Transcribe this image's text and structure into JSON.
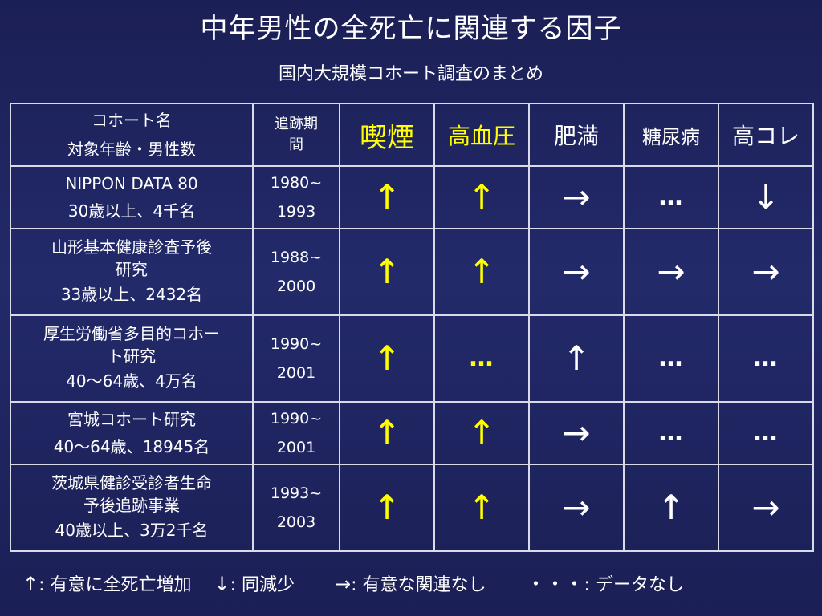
{
  "title": "中年男性の全死亡に関連する因子",
  "subtitle": "国内大規模コホート調査のまとめ",
  "table": {
    "header": {
      "name_line1": "コホート名",
      "name_line2": "対象年齢・男性数",
      "period_line1": "追跡期",
      "period_line2": "間",
      "factors": [
        "喫煙",
        "高血圧",
        "肥満",
        "糖尿病",
        "高コレ"
      ]
    },
    "rows": [
      {
        "name_lines": [
          "NIPPON DATA 80",
          "30歳以上、4千名"
        ],
        "period": [
          "1980~",
          "1993"
        ],
        "marks": [
          "↑",
          "↑",
          "→",
          "…",
          "↓"
        ]
      },
      {
        "name_lines": [
          "山形基本健康診査予後",
          "研究",
          "33歳以上、2432名"
        ],
        "period": [
          "1988~",
          "2000"
        ],
        "marks": [
          "↑",
          "↑",
          "→",
          "→",
          "→"
        ]
      },
      {
        "name_lines": [
          "厚生労働省多目的コホー",
          "ト研究",
          "40～64歳、4万名"
        ],
        "period": [
          "1990~",
          "2001"
        ],
        "marks": [
          "↑",
          "…",
          "↑",
          "…",
          "…"
        ]
      },
      {
        "name_lines": [
          "宮城コホート研究",
          "40～64歳、18945名"
        ],
        "period": [
          "1990~",
          "2001"
        ],
        "marks": [
          "↑",
          "↑",
          "→",
          "…",
          "…"
        ]
      },
      {
        "name_lines": [
          "茨城県健診受診者生命",
          "予後追跡事業",
          "40歳以上、3万2千名"
        ],
        "period": [
          "1993~",
          "2003"
        ],
        "marks": [
          "↑",
          "↑",
          "→",
          "↑",
          "→"
        ]
      }
    ]
  },
  "legend": {
    "up_symbol": "↑",
    "up_text": ": 有意に全死亡増加",
    "down_symbol": "↓",
    "down_text": ": 同減少",
    "right_symbol": "→",
    "right_text": ": 有意な関連なし",
    "none_symbol": "・・・",
    "none_text": ": データなし"
  },
  "colors": {
    "background": "#1f2460",
    "highlight": "#ffff00",
    "text": "#ffffff",
    "grid": "#d9dbe8"
  }
}
